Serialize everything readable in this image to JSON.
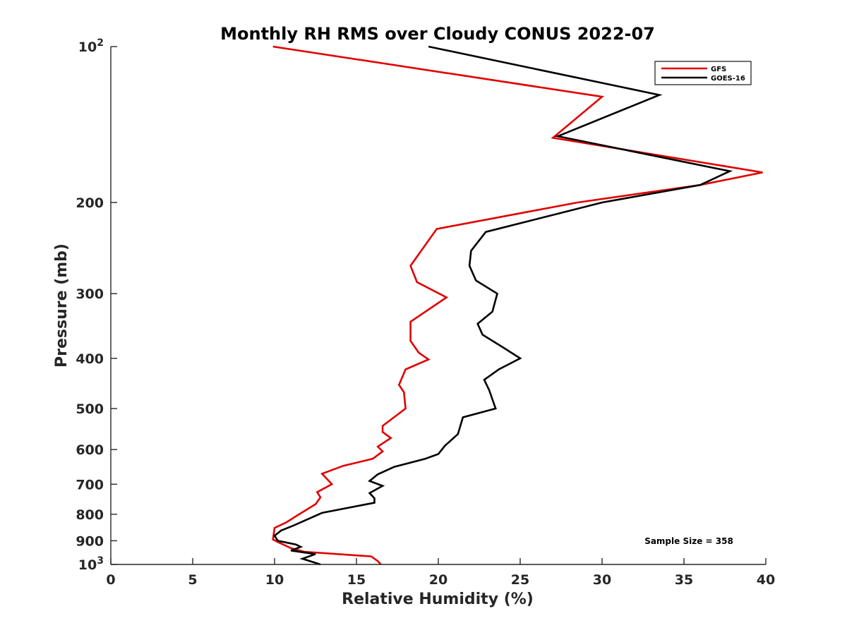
{
  "chart_data": {
    "type": "line",
    "title": "Monthly RH RMS over Cloudy CONUS  2022-07",
    "xlabel": "Relative Humidity (%)",
    "ylabel": "Pressure (mb)",
    "xlim": [
      0,
      40
    ],
    "ylim": [
      100,
      1000
    ],
    "y_scale": "log",
    "y_reversed": true,
    "xticks": [
      0,
      5,
      10,
      15,
      20,
      25,
      30,
      35,
      40
    ],
    "yticks": [
      {
        "value": 100,
        "label": "10",
        "sup": "2"
      },
      {
        "value": 200,
        "label": "200"
      },
      {
        "value": 300,
        "label": "300"
      },
      {
        "value": 400,
        "label": "400"
      },
      {
        "value": 500,
        "label": "500"
      },
      {
        "value": 600,
        "label": "600"
      },
      {
        "value": 700,
        "label": "700"
      },
      {
        "value": 800,
        "label": "800"
      },
      {
        "value": 900,
        "label": "900"
      },
      {
        "value": 1000,
        "label": "10",
        "sup": "3"
      }
    ],
    "grid": false,
    "legend_position": "top-right",
    "annotation": "Sample Size = 358",
    "series": [
      {
        "name": "GFS",
        "color": "#e00000",
        "points": [
          [
            9.9,
            100
          ],
          [
            30.0,
            125
          ],
          [
            27.0,
            150
          ],
          [
            39.8,
            175
          ],
          [
            36.0,
            185
          ],
          [
            28.5,
            200
          ],
          [
            19.9,
            225
          ],
          [
            18.3,
            265
          ],
          [
            18.7,
            285
          ],
          [
            20.5,
            305
          ],
          [
            18.3,
            340
          ],
          [
            18.3,
            370
          ],
          [
            18.8,
            390
          ],
          [
            19.4,
            402
          ],
          [
            18.0,
            420
          ],
          [
            17.6,
            450
          ],
          [
            17.9,
            465
          ],
          [
            18.0,
            500
          ],
          [
            16.6,
            540
          ],
          [
            16.6,
            555
          ],
          [
            17.1,
            570
          ],
          [
            16.3,
            592
          ],
          [
            16.6,
            605
          ],
          [
            16.0,
            625
          ],
          [
            14.2,
            645
          ],
          [
            12.9,
            668
          ],
          [
            13.5,
            700
          ],
          [
            12.6,
            725
          ],
          [
            12.8,
            742
          ],
          [
            12.5,
            765
          ],
          [
            11.5,
            800
          ],
          [
            10.7,
            830
          ],
          [
            10.0,
            850
          ],
          [
            9.9,
            895
          ],
          [
            10.2,
            905
          ],
          [
            11.0,
            930
          ],
          [
            11.8,
            945
          ],
          [
            15.9,
            965
          ],
          [
            16.3,
            985
          ],
          [
            16.5,
            1000
          ]
        ]
      },
      {
        "name": "GOES-16",
        "color": "#000000",
        "points": [
          [
            19.4,
            100
          ],
          [
            33.5,
            124
          ],
          [
            27.3,
            149
          ],
          [
            37.8,
            174
          ],
          [
            36.0,
            185
          ],
          [
            30.0,
            200
          ],
          [
            22.9,
            228
          ],
          [
            22.0,
            248
          ],
          [
            21.9,
            265
          ],
          [
            22.3,
            283
          ],
          [
            23.6,
            300
          ],
          [
            23.3,
            325
          ],
          [
            22.4,
            343
          ],
          [
            22.7,
            360
          ],
          [
            23.9,
            380
          ],
          [
            25.0,
            400
          ],
          [
            23.7,
            420
          ],
          [
            22.8,
            440
          ],
          [
            23.1,
            460
          ],
          [
            23.4,
            490
          ],
          [
            23.5,
            500
          ],
          [
            21.5,
            520
          ],
          [
            21.2,
            560
          ],
          [
            20.4,
            590
          ],
          [
            20.0,
            612
          ],
          [
            19.2,
            625
          ],
          [
            17.3,
            648
          ],
          [
            16.3,
            670
          ],
          [
            15.8,
            690
          ],
          [
            16.6,
            705
          ],
          [
            15.8,
            728
          ],
          [
            16.1,
            745
          ],
          [
            16.1,
            760
          ],
          [
            12.9,
            795
          ],
          [
            11.2,
            840
          ],
          [
            10.4,
            860
          ],
          [
            10.0,
            880
          ],
          [
            10.2,
            900
          ],
          [
            11.3,
            915
          ],
          [
            11.6,
            925
          ],
          [
            11.0,
            940
          ],
          [
            12.5,
            955
          ],
          [
            11.7,
            975
          ],
          [
            12.8,
            1000
          ]
        ]
      }
    ]
  }
}
